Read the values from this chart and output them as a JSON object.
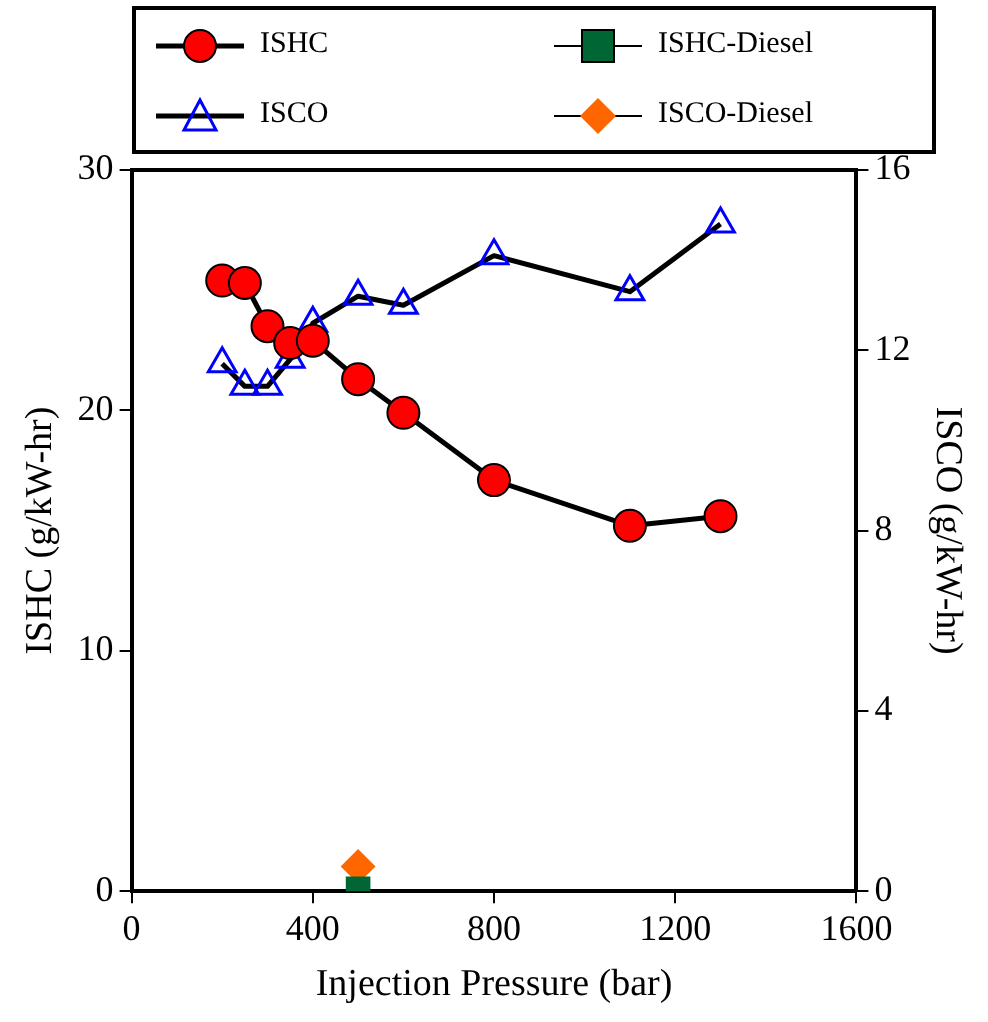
{
  "chart_data": {
    "type": "line",
    "xlabel": "Injection Pressure (bar)",
    "ylabel": "ISHC (g/kW-hr)",
    "y2label": "ISCO (g/kW-hr)",
    "xlim": [
      0,
      1600
    ],
    "xticks": [
      0,
      400,
      800,
      1200,
      1600
    ],
    "ylim": [
      0,
      30
    ],
    "yticks": [
      0,
      10,
      20,
      30
    ],
    "y2lim": [
      0,
      16
    ],
    "y2ticks": [
      0,
      4,
      8,
      12,
      16
    ],
    "grid": false,
    "legend": "top",
    "line_style": "solid",
    "series": [
      {
        "name": "ISHC",
        "marker": "circle",
        "color": "#ff0000",
        "x": [
          200,
          250,
          300,
          350,
          400,
          500,
          600,
          800,
          1100,
          1300
        ],
        "values": [
          25.4,
          25.3,
          23.5,
          22.8,
          22.9,
          21.3,
          19.9,
          17.1,
          15.2,
          15.6
        ]
      },
      {
        "name": "ISCO",
        "marker": "triangle",
        "axis": "y2",
        "color": "#0000ff",
        "x": [
          200,
          250,
          300,
          350,
          400,
          500,
          600,
          800,
          1100,
          1300
        ],
        "values": [
          11.7,
          11.2,
          11.2,
          11.8,
          12.6,
          13.2,
          13.0,
          14.1,
          13.3,
          14.8
        ]
      },
      {
        "name": "ISHC-Diesel",
        "type": "scatter",
        "marker": "square",
        "color": "#006633",
        "x": [
          500
        ],
        "values": [
          0.1
        ]
      },
      {
        "name": "ISCO-Diesel",
        "type": "scatter",
        "marker": "diamond",
        "axis": "y2",
        "color": "#ff6600",
        "x": [
          500
        ],
        "values": [
          0.55
        ]
      }
    ]
  }
}
